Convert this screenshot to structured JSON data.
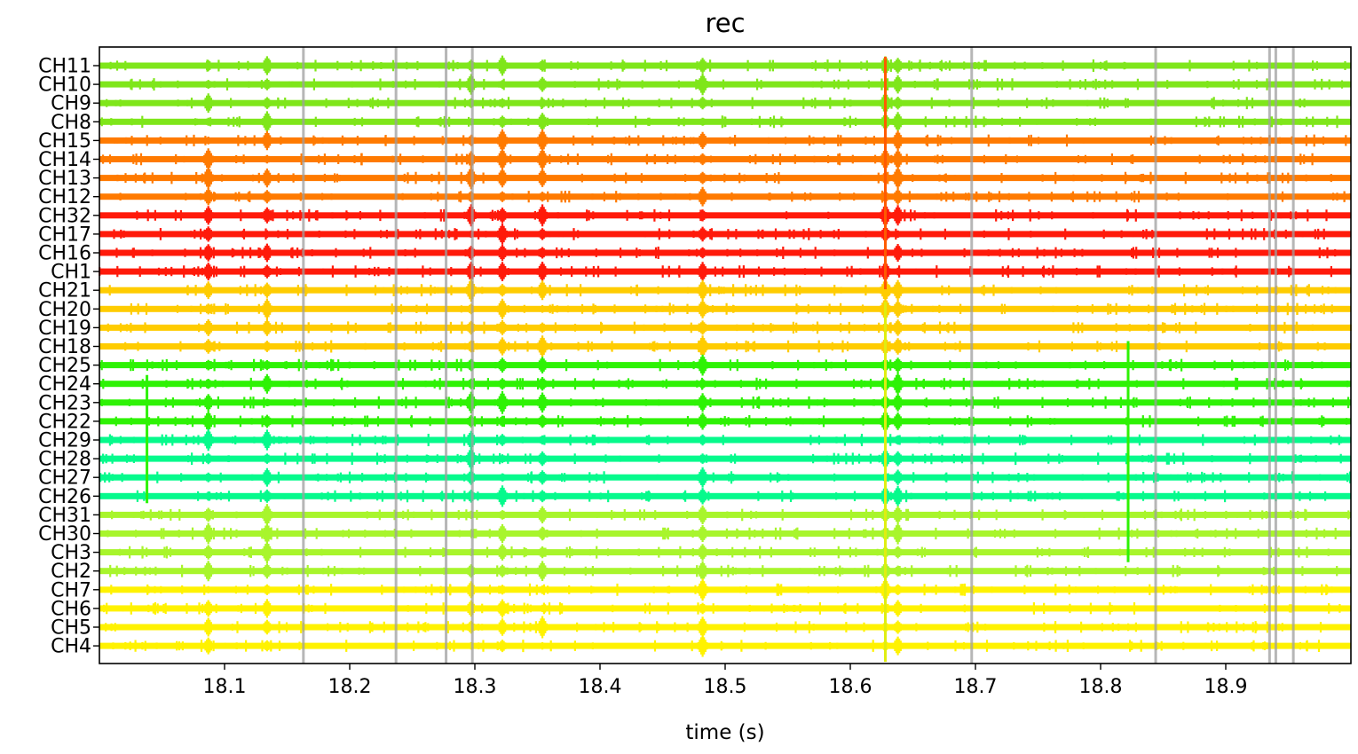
{
  "chart_data": {
    "type": "line",
    "title": "rec",
    "xlabel": "time (s)",
    "ylabel": "",
    "xlim": [
      18.0,
      19.0
    ],
    "x_ticks": [
      "18.1",
      "18.2",
      "18.3",
      "18.4",
      "18.5",
      "18.6",
      "18.7",
      "18.8",
      "18.9"
    ],
    "x_tick_values": [
      18.1,
      18.2,
      18.3,
      18.4,
      18.5,
      18.6,
      18.7,
      18.8,
      18.9
    ],
    "grid": false,
    "legend": "none",
    "channels": [
      {
        "name": "CH11",
        "color": "#7fe61a"
      },
      {
        "name": "CH10",
        "color": "#7fe61a"
      },
      {
        "name": "CH9",
        "color": "#7fe61a"
      },
      {
        "name": "CH8",
        "color": "#7fe61a"
      },
      {
        "name": "CH15",
        "color": "#ff7a00"
      },
      {
        "name": "CH14",
        "color": "#ff7a00"
      },
      {
        "name": "CH13",
        "color": "#ff7a00"
      },
      {
        "name": "CH12",
        "color": "#ff7a00"
      },
      {
        "name": "CH32",
        "color": "#ff1a0a"
      },
      {
        "name": "CH17",
        "color": "#ff1a0a"
      },
      {
        "name": "CH16",
        "color": "#ff1a0a"
      },
      {
        "name": "CH1",
        "color": "#ff1a0a"
      },
      {
        "name": "CH21",
        "color": "#ffcc00"
      },
      {
        "name": "CH20",
        "color": "#ffcc00"
      },
      {
        "name": "CH19",
        "color": "#ffcc00"
      },
      {
        "name": "CH18",
        "color": "#ffcc00"
      },
      {
        "name": "CH25",
        "color": "#2ef205"
      },
      {
        "name": "CH24",
        "color": "#2ef205"
      },
      {
        "name": "CH23",
        "color": "#2ef205"
      },
      {
        "name": "CH22",
        "color": "#2ef205"
      },
      {
        "name": "CH29",
        "color": "#05fa8c"
      },
      {
        "name": "CH28",
        "color": "#05fa8c"
      },
      {
        "name": "CH27",
        "color": "#05fa8c"
      },
      {
        "name": "CH26",
        "color": "#05fa8c"
      },
      {
        "name": "CH31",
        "color": "#a8f52c"
      },
      {
        "name": "CH30",
        "color": "#a8f52c"
      },
      {
        "name": "CH3",
        "color": "#a8f52c"
      },
      {
        "name": "CH2",
        "color": "#a8f52c"
      },
      {
        "name": "CH7",
        "color": "#fff200"
      },
      {
        "name": "CH6",
        "color": "#fff200"
      },
      {
        "name": "CH5",
        "color": "#fff200"
      },
      {
        "name": "CH4",
        "color": "#fff200"
      }
    ],
    "event_markers_s": [
      18.163,
      18.237,
      18.277,
      18.298,
      18.697,
      18.844,
      18.935,
      18.94,
      18.954
    ],
    "event_marker_color": "#9e9e9e",
    "burst_times_s": [
      18.087,
      18.134,
      18.297,
      18.322,
      18.354,
      18.482,
      18.628,
      18.638
    ],
    "spike_times_s": [
      18.038,
      18.629,
      18.822
    ]
  }
}
